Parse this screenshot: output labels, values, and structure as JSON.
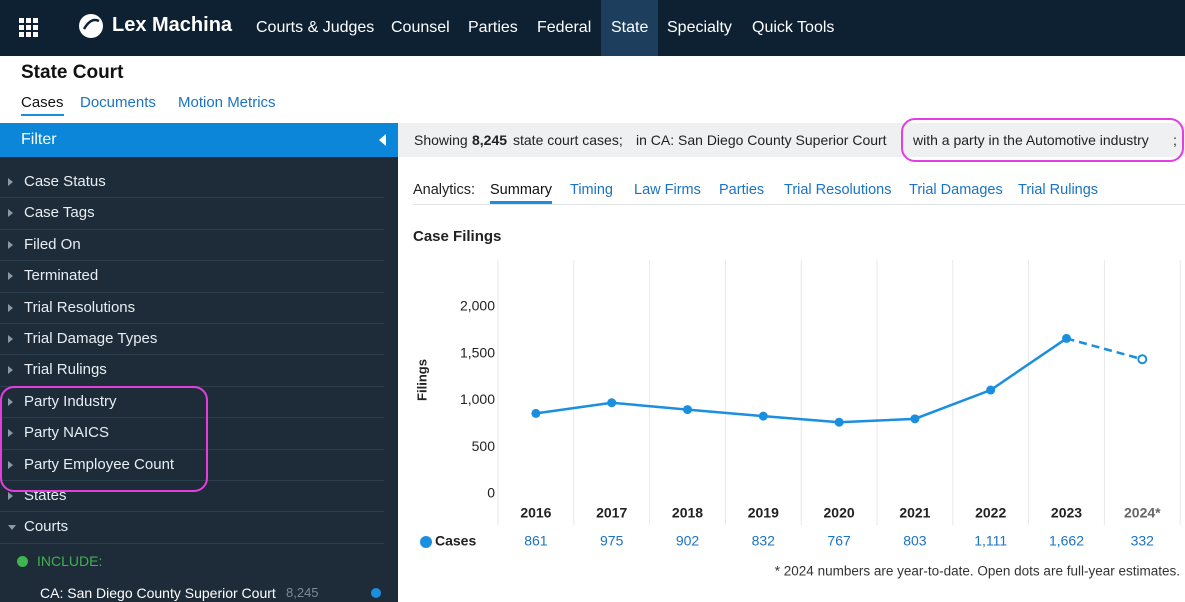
{
  "nav": {
    "brand": "Lex Machina",
    "items": [
      "Courts & Judges",
      "Counsel",
      "Parties",
      "Federal",
      "State",
      "Specialty",
      "Quick Tools"
    ],
    "active": 4
  },
  "header": {
    "title": "State Court",
    "tabs": [
      "Cases",
      "Documents",
      "Motion Metrics"
    ],
    "active": 0
  },
  "filter": {
    "title": "Filter",
    "items": [
      "Case Status",
      "Case Tags",
      "Filed On",
      "Terminated",
      "Trial Resolutions",
      "Trial Damage Types",
      "Trial Rulings",
      "Party Industry",
      "Party NAICS",
      "Party Employee Count",
      "States",
      "Courts"
    ],
    "include_label": "INCLUDE:",
    "court": "CA: San Diego County Superior Court",
    "court_count": "8,245"
  },
  "summary": {
    "prefix": "Showing",
    "count": "8,245",
    "suffix": "state court cases;",
    "court": "in CA: San Diego County Superior Court",
    "industry": "with a party in the Automotive industry",
    "end": ";"
  },
  "analytics": {
    "label": "Analytics:",
    "tabs": [
      "Summary",
      "Timing",
      "Law Firms",
      "Parties",
      "Trial Resolutions",
      "Trial Damages",
      "Trial Rulings"
    ],
    "active": 0
  },
  "chart_data": {
    "type": "line",
    "title": "Case Filings",
    "y_label": "Filings",
    "categories": [
      "2016",
      "2017",
      "2018",
      "2019",
      "2020",
      "2021",
      "2022",
      "2023",
      "2024*"
    ],
    "series": [
      {
        "name": "Cases",
        "color": "#1a8fe0",
        "values": [
          861,
          975,
          902,
          832,
          767,
          803,
          1111,
          1662,
          332
        ],
        "value_labels": [
          "861",
          "975",
          "902",
          "832",
          "767",
          "803",
          "1,111",
          "1,662",
          "332"
        ]
      }
    ],
    "estimates": [
      null,
      null,
      null,
      null,
      null,
      null,
      null,
      null,
      1440
    ],
    "ylim": [
      0,
      2500
    ],
    "yticks": [
      0,
      500,
      {
        "value": 1000,
        "label": "1,000"
      },
      {
        "value": 1500,
        "label": "1,500"
      },
      {
        "value": 2000,
        "label": "2,000"
      }
    ],
    "footnote": "* 2024 numbers are year-to-date. Open dots are full-year estimates."
  }
}
